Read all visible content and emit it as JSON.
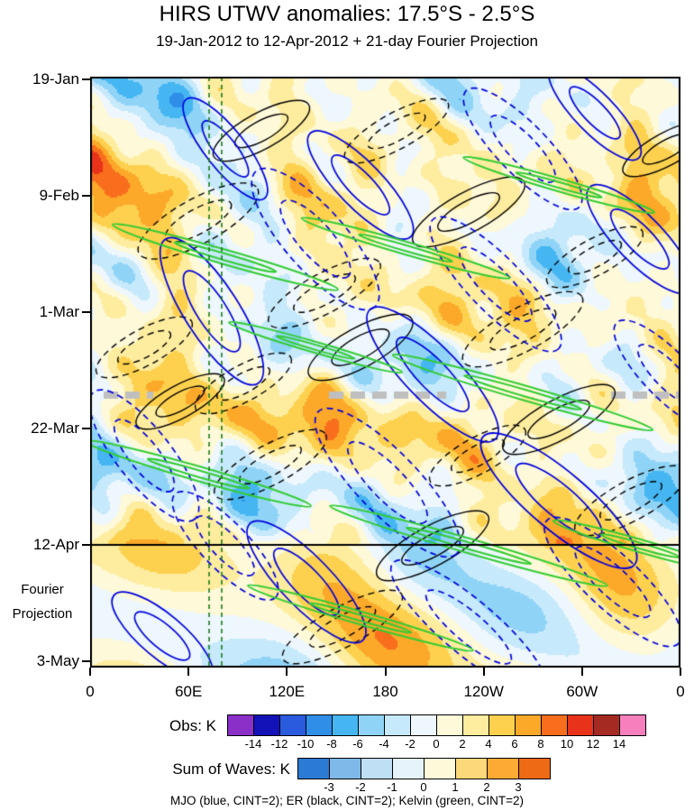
{
  "title": "HIRS UTWV anomalies: 17.5°S - 2.5°S",
  "subtitle": "19-Jan-2012 to 12-Apr-2012 + 21-day Fourier Projection",
  "chart_data": {
    "type": "heatmap",
    "description": "Hovmöller (time vs. longitude) diagram of HIRS upper-tropospheric water vapor anomalies averaged over 17.5S-2.5S, with MJO, ER and Kelvin wave contour overlays; the region below the 12-Apr line is a 21-day Fourier projection.",
    "x_axis": {
      "ticks": [
        "0",
        "60E",
        "120E",
        "180",
        "120W",
        "60W",
        "0"
      ],
      "range_deg": [
        0,
        360
      ]
    },
    "y_axis": {
      "ticks": [
        "19-Jan",
        "9-Feb",
        "1-Mar",
        "22-Mar",
        "12-Apr",
        "3-May"
      ],
      "annotation_lines": [
        "Fourier",
        "Projection"
      ]
    },
    "projection_start": "12-Apr",
    "obs_colorbar": {
      "label": "Obs: K",
      "ticks": [
        -14,
        -12,
        -10,
        -8,
        -6,
        -4,
        -2,
        0,
        2,
        4,
        6,
        8,
        10,
        12,
        14
      ],
      "colors": [
        "#8B2FC9",
        "#1212B8",
        "#2A5BDF",
        "#2F8EE8",
        "#45B6F2",
        "#8FD4F7",
        "#C6E9FB",
        "#EDF7FD",
        "#FEF9D8",
        "#FEEC9F",
        "#FDD14E",
        "#FCA829",
        "#F96E1D",
        "#E8331A",
        "#A52A21",
        "#F77FBE"
      ]
    },
    "waves_colorbar": {
      "label": "Sum of Waves: K",
      "ticks": [
        -3,
        -2,
        -1,
        0,
        1,
        2,
        3
      ],
      "colors": [
        "#2B7BD4",
        "#7FB9E9",
        "#BFDFF4",
        "#E6F3FB",
        "#FEFAD9",
        "#FDD87A",
        "#FCAA33",
        "#EF6A14"
      ]
    },
    "caption": "MJO (blue, CINT=2); ER (black, CINT=2); Kelvin (green, CINT=2)",
    "overlays": [
      {
        "name": "MJO",
        "color": "#0000DD",
        "cint": 2
      },
      {
        "name": "ER",
        "color": "#000000",
        "cint": 2
      },
      {
        "name": "Kelvin",
        "color": "#33CC33",
        "cint": 2
      }
    ]
  }
}
